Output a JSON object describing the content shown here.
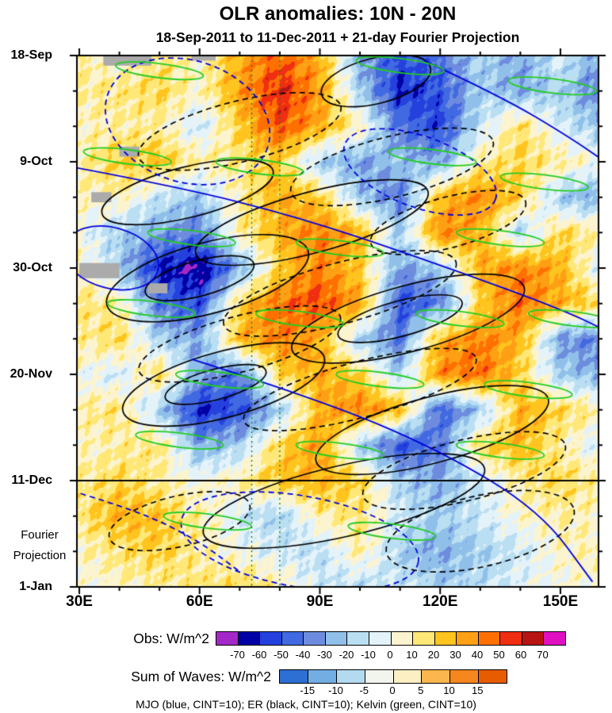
{
  "title": "OLR anomalies: 10N - 20N",
  "subtitle": "18-Sep-2011 to 11-Dec-2011 + 21-day Fourier Projection",
  "caption": "MJO (blue, CINT=10); ER (black, CINT=10); Kelvin (green, CINT=10)",
  "axes": {
    "x_ticks": [
      {
        "deg": 30,
        "label": "30E"
      },
      {
        "deg": 60,
        "label": "60E"
      },
      {
        "deg": 90,
        "label": "90E"
      },
      {
        "deg": 120,
        "label": "120E"
      },
      {
        "deg": 150,
        "label": "150E"
      }
    ],
    "y_ticks": [
      {
        "day": 0,
        "label": "18-Sep"
      },
      {
        "day": 21,
        "label": "9-Oct"
      },
      {
        "day": 42,
        "label": "30-Oct"
      },
      {
        "day": 63,
        "label": "20-Nov"
      },
      {
        "day": 84,
        "label": "11-Dec"
      },
      {
        "day": 105,
        "label": "1-Jan"
      }
    ],
    "projection_note": [
      "Fourier",
      "Projection"
    ],
    "projection_start_day": 84
  },
  "chart_data": {
    "type": "heatmap",
    "title": "OLR anomalies: 10N - 20N",
    "subtitle": "18-Sep-2011 to 11-Dec-2011 + 21-day Fourier Projection",
    "units": "W/m^2",
    "latitude_band": "10N - 20N",
    "x_units": "degrees east",
    "x_range": [
      30,
      160
    ],
    "time_range": [
      "18-Sep-2011",
      "1-Jan-2012"
    ],
    "observed_end": "11-Dec-2011",
    "projection_days": 21,
    "x": [
      30,
      40,
      50,
      60,
      70,
      80,
      90,
      100,
      110,
      120,
      130,
      140,
      150,
      160
    ],
    "t_days": [
      0,
      7,
      14,
      21,
      28,
      35,
      42,
      49,
      56,
      63,
      70,
      77,
      84,
      91,
      98,
      105
    ],
    "values": [
      [
        12,
        0,
        15,
        5,
        30,
        48,
        30,
        -30,
        -52,
        -40,
        -18,
        -30,
        -8,
        -30
      ],
      [
        10,
        14,
        20,
        5,
        35,
        58,
        35,
        -20,
        -62,
        -50,
        -20,
        -30,
        -18,
        -42
      ],
      [
        6,
        10,
        10,
        -12,
        22,
        52,
        32,
        8,
        -42,
        -55,
        -12,
        18,
        -10,
        -22
      ],
      [
        10,
        22,
        26,
        10,
        12,
        22,
        -20,
        -32,
        -22,
        -30,
        10,
        20,
        12,
        0
      ],
      [
        6,
        10,
        -12,
        -22,
        10,
        32,
        22,
        -22,
        -42,
        28,
        40,
        22,
        -22,
        -30
      ],
      [
        0,
        -20,
        -30,
        -40,
        10,
        30,
        42,
        30,
        -20,
        42,
        30,
        -20,
        20,
        10
      ],
      [
        10,
        -20,
        -62,
        -72,
        -30,
        20,
        42,
        22,
        -32,
        -20,
        30,
        42,
        30,
        -10
      ],
      [
        15,
        10,
        -42,
        -52,
        20,
        46,
        52,
        35,
        -52,
        -40,
        20,
        46,
        30,
        20
      ],
      [
        10,
        20,
        -20,
        -30,
        30,
        42,
        30,
        -20,
        -42,
        30,
        42,
        30,
        -32,
        -40
      ],
      [
        0,
        -10,
        20,
        -30,
        -42,
        20,
        32,
        20,
        -20,
        40,
        46,
        20,
        -20,
        -30
      ],
      [
        10,
        15,
        -20,
        -62,
        -52,
        -20,
        30,
        42,
        30,
        -48,
        -22,
        30,
        20,
        10
      ],
      [
        5,
        10,
        15,
        -30,
        -20,
        20,
        36,
        -20,
        -52,
        -40,
        20,
        30,
        10,
        -10
      ],
      [
        10,
        20,
        10,
        0,
        10,
        26,
        30,
        20,
        -20,
        -30,
        -10,
        10,
        20,
        10
      ],
      [
        15,
        30,
        25,
        10,
        -10,
        -20,
        10,
        15,
        -10,
        -20,
        -10,
        5,
        10,
        5
      ],
      [
        5,
        15,
        22,
        10,
        0,
        -10,
        -15,
        10,
        -20,
        -30,
        -20,
        -10,
        5,
        10
      ],
      [
        0,
        5,
        10,
        15,
        20,
        10,
        -10,
        -15,
        -10,
        -20,
        -15,
        -5,
        0,
        5
      ]
    ],
    "fill_levels": [
      -70,
      -60,
      -50,
      -40,
      -30,
      -20,
      -10,
      0,
      10,
      20,
      30,
      40,
      50,
      60,
      70
    ],
    "fill_colors": [
      "#A428C8",
      "#0000A5",
      "#2441DE",
      "#4169E1",
      "#6E8CDE",
      "#90C0EA",
      "#BADEF2",
      "#E4F2FA",
      "#FCF4CE",
      "#FFE878",
      "#FFC41E",
      "#FFA014",
      "#FF7000",
      "#EF2E12",
      "#B81414",
      "#E010C0"
    ],
    "missing_color": "#ABABAB",
    "missing_patches": [
      [
        36,
        48,
        0,
        2
      ],
      [
        58,
        64,
        0,
        1
      ],
      [
        40,
        45,
        18,
        20
      ],
      [
        33,
        38,
        27,
        29
      ],
      [
        30,
        40,
        41,
        44
      ],
      [
        47,
        52,
        45,
        47
      ]
    ],
    "overlays": {
      "mjo": {
        "name": "MJO",
        "color_name": "blue",
        "cint": 10,
        "color": "#0000DD",
        "ellipses": [
          {
            "x": 57,
            "t": 13,
            "rx": 21,
            "ry": 12,
            "a": 18,
            "dash": true
          },
          {
            "x": 115,
            "t": 23,
            "rx": 20,
            "ry": 7,
            "a": 20,
            "dash": true
          },
          {
            "x": 38,
            "t": 40,
            "rx": 12,
            "ry": 6,
            "a": 15,
            "dash": false
          },
          {
            "x": 85,
            "t": 96,
            "rx": 30,
            "ry": 9,
            "a": 10,
            "dash": true
          }
        ],
        "paths": [
          {
            "dash": false,
            "pts": [
              [
                28,
                22
              ],
              [
                55,
                26
              ],
              [
                85,
                32
              ],
              [
                115,
                40
              ],
              [
                150,
                50
              ],
              [
                163,
                55
              ]
            ]
          },
          {
            "dash": false,
            "pts": [
              [
                58,
                60
              ],
              [
                90,
                68
              ],
              [
                120,
                78
              ],
              [
                145,
                90
              ],
              [
                158,
                104
              ]
            ]
          },
          {
            "dash": false,
            "pts": [
              [
                116,
                1
              ],
              [
                135,
                8
              ],
              [
                152,
                16
              ],
              [
                163,
                22
              ]
            ]
          },
          {
            "dash": true,
            "pts": [
              [
                28,
                86
              ],
              [
                45,
                90
              ],
              [
                60,
                96
              ],
              [
                70,
                102
              ]
            ]
          }
        ]
      },
      "er": {
        "name": "ER",
        "color_name": "black",
        "cint": 10,
        "color": "#000000",
        "ellipses": [
          {
            "x": 104,
            "t": 5,
            "rx": 14,
            "ry": 4.5,
            "a": -14,
            "dash": false
          },
          {
            "x": 70,
            "t": 15,
            "rx": 26,
            "ry": 6,
            "a": -14,
            "dash": true
          },
          {
            "x": 108,
            "t": 22,
            "rx": 26,
            "ry": 6,
            "a": -14,
            "dash": true
          },
          {
            "x": 57,
            "t": 27,
            "rx": 22,
            "ry": 5,
            "a": -14,
            "dash": false
          },
          {
            "x": 88,
            "t": 33,
            "rx": 30,
            "ry": 6,
            "a": -15,
            "dash": false
          },
          {
            "x": 122,
            "t": 33,
            "rx": 20,
            "ry": 5,
            "a": -15,
            "dash": true
          },
          {
            "x": 62,
            "t": 44,
            "rx": 26,
            "ry": 7,
            "a": -15,
            "dash": false
          },
          {
            "x": 60,
            "t": 44,
            "rx": 14,
            "ry": 3.5,
            "a": -15,
            "dash": false
          },
          {
            "x": 95,
            "t": 47,
            "rx": 30,
            "ry": 6,
            "a": -15,
            "dash": true
          },
          {
            "x": 112,
            "t": 52,
            "rx": 30,
            "ry": 6.5,
            "a": -15,
            "dash": false
          },
          {
            "x": 110,
            "t": 52,
            "rx": 16,
            "ry": 3.5,
            "a": -15,
            "dash": false
          },
          {
            "x": 70,
            "t": 57,
            "rx": 26,
            "ry": 5.5,
            "a": -15,
            "dash": true
          },
          {
            "x": 66,
            "t": 65,
            "rx": 26,
            "ry": 6.5,
            "a": -15,
            "dash": false
          },
          {
            "x": 64,
            "t": 65,
            "rx": 13,
            "ry": 3,
            "a": -15,
            "dash": false
          },
          {
            "x": 100,
            "t": 66,
            "rx": 30,
            "ry": 5.5,
            "a": -15,
            "dash": true
          },
          {
            "x": 118,
            "t": 74,
            "rx": 30,
            "ry": 6.5,
            "a": -15,
            "dash": false
          },
          {
            "x": 126,
            "t": 82,
            "rx": 26,
            "ry": 6,
            "a": -14,
            "dash": true
          },
          {
            "x": 96,
            "t": 88,
            "rx": 36,
            "ry": 7,
            "a": -13,
            "dash": false
          },
          {
            "x": 130,
            "t": 94,
            "rx": 24,
            "ry": 7,
            "a": -13,
            "dash": true
          },
          {
            "x": 55,
            "t": 92,
            "rx": 18,
            "ry": 5,
            "a": -13,
            "dash": true
          }
        ]
      },
      "kelvin": {
        "name": "Kelvin",
        "color_name": "green",
        "cint": 10,
        "color": "#22CC22",
        "rx": 11,
        "ry": 1.4,
        "a": 7,
        "streaks": [
          [
            50,
            3
          ],
          [
            110,
            2
          ],
          [
            148,
            6
          ],
          [
            42,
            20
          ],
          [
            75,
            22
          ],
          [
            118,
            20
          ],
          [
            146,
            25
          ],
          [
            58,
            36
          ],
          [
            95,
            38
          ],
          [
            135,
            36
          ],
          [
            48,
            50
          ],
          [
            85,
            52
          ],
          [
            125,
            52
          ],
          [
            153,
            52
          ],
          [
            65,
            64
          ],
          [
            105,
            64
          ],
          [
            142,
            66
          ],
          [
            55,
            76
          ],
          [
            95,
            78
          ],
          [
            135,
            78
          ],
          [
            62,
            92
          ],
          [
            108,
            94
          ]
        ]
      },
      "projection_divider_day": 84,
      "green_dotted_lines_deg": [
        73,
        80
      ]
    }
  },
  "colorbars": [
    {
      "label": "Obs: W/m^2",
      "ticks": [
        -70,
        -60,
        -50,
        -40,
        -30,
        -20,
        -10,
        0,
        10,
        20,
        30,
        40,
        50,
        60,
        70
      ],
      "colors": [
        "#A428C8",
        "#0000A5",
        "#2441DE",
        "#4169E1",
        "#6E8CDE",
        "#90C0EA",
        "#BADEF2",
        "#E4F2FA",
        "#FCF4CE",
        "#FFE878",
        "#FFC41E",
        "#FFA014",
        "#FF7000",
        "#EF2E12",
        "#B81414",
        "#E010C0"
      ]
    },
    {
      "label": "Sum of Waves: W/m^2",
      "ticks": [
        -15,
        -10,
        -5,
        0,
        5,
        10,
        15
      ],
      "colors": [
        "#2D6FD2",
        "#72AEE4",
        "#B4DAF0",
        "#F2F4EE",
        "#FCEFC4",
        "#FBB74E",
        "#F5871E",
        "#E85C00"
      ]
    }
  ]
}
